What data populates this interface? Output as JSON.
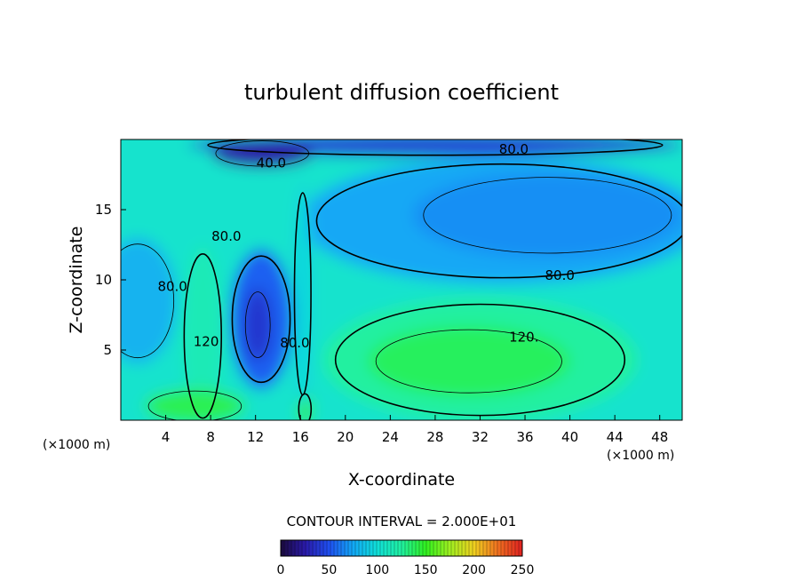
{
  "chart_data": {
    "type": "heatmap",
    "title": "turbulent diffusion coefficient",
    "xlabel": "X-coordinate",
    "ylabel": "Z-coordinate",
    "x_unit_left": "(×1000 m)",
    "x_unit_right": "(×1000 m)",
    "xlim": [
      0,
      50
    ],
    "ylim": [
      0,
      20
    ],
    "x_ticks": [
      4,
      8,
      12,
      16,
      20,
      24,
      28,
      32,
      36,
      40,
      44,
      48
    ],
    "y_ticks": [
      5,
      10,
      15
    ],
    "contour_interval_text": "CONTOUR INTERVAL = 2.000E+01",
    "colorbar": {
      "min": 0,
      "max": 250,
      "ticks": [
        0,
        50,
        100,
        150,
        200,
        250
      ],
      "colors": [
        "#1a0a3c",
        "#2a1aa8",
        "#1f4ff0",
        "#12a8f5",
        "#10e0d8",
        "#20f0a0",
        "#30f020",
        "#a0f020",
        "#f0d020",
        "#f07020",
        "#e02020"
      ]
    },
    "contour_labels": [
      {
        "text": "80.0",
        "x": 35,
        "y": 19.0
      },
      {
        "text": "40.0",
        "x": 13.4,
        "y": 18.0
      },
      {
        "text": "80.0",
        "x": 9.4,
        "y": 12.8
      },
      {
        "text": "80.0",
        "x": 4.6,
        "y": 9.2
      },
      {
        "text": "80.0",
        "x": 39.1,
        "y": 10.0
      },
      {
        "text": "120.",
        "x": 35.9,
        "y": 5.6
      },
      {
        "text": "120",
        "x": 7.6,
        "y": 5.3
      },
      {
        "text": "80.0",
        "x": 15.5,
        "y": 5.2
      }
    ],
    "regions": [
      {
        "name": "background",
        "level": 105,
        "shape": "rect",
        "x": [
          0,
          50
        ],
        "y": [
          0,
          20
        ]
      },
      {
        "name": "upper-band",
        "level": 75,
        "shape": "ellipse",
        "cx": 34,
        "cy": 14.2,
        "rx": 18,
        "ry": 4.5
      },
      {
        "name": "upper-core",
        "level": 68,
        "shape": "ellipse",
        "cx": 38,
        "cy": 14.6,
        "rx": 12,
        "ry": 3.0
      },
      {
        "name": "top-strip",
        "level": 40,
        "shape": "ellipse",
        "cx": 28,
        "cy": 19.6,
        "rx": 22,
        "ry": 0.8
      },
      {
        "name": "left-blob",
        "level": 80,
        "shape": "ellipse",
        "cx": 1.5,
        "cy": 8.5,
        "rx": 3.5,
        "ry": 4.5
      },
      {
        "name": "lower-warm",
        "level": 125,
        "shape": "ellipse",
        "cx": 32,
        "cy": 4.3,
        "rx": 14,
        "ry": 4.4
      },
      {
        "name": "lower-core",
        "level": 138,
        "shape": "ellipse",
        "cx": 31,
        "cy": 4.2,
        "rx": 9,
        "ry": 2.5
      },
      {
        "name": "mid-dark",
        "level": 55,
        "shape": "ellipse",
        "cx": 12.5,
        "cy": 7.2,
        "rx": 2.8,
        "ry": 5.0
      },
      {
        "name": "mid-core",
        "level": 38,
        "shape": "ellipse",
        "cx": 12.2,
        "cy": 6.8,
        "rx": 1.2,
        "ry": 2.6
      },
      {
        "name": "plume-left",
        "level": 115,
        "shape": "ellipse",
        "cx": 7.3,
        "cy": 6.0,
        "rx": 1.8,
        "ry": 6.5
      },
      {
        "name": "plume-base",
        "level": 140,
        "shape": "ellipse",
        "cx": 6.6,
        "cy": 1.0,
        "rx": 4.5,
        "ry": 1.2
      },
      {
        "name": "plume-tip",
        "level": 150,
        "shape": "ellipse",
        "cx": 16.4,
        "cy": 0.8,
        "rx": 0.6,
        "ry": 1.2
      },
      {
        "name": "upper-dark-arc",
        "level": 25,
        "shape": "ellipse",
        "cx": 12.6,
        "cy": 19.0,
        "rx": 4.5,
        "ry": 1.0
      },
      {
        "name": "stem-light",
        "level": 95,
        "shape": "ellipse",
        "cx": 16.2,
        "cy": 9.0,
        "rx": 0.8,
        "ry": 8.0
      }
    ]
  }
}
